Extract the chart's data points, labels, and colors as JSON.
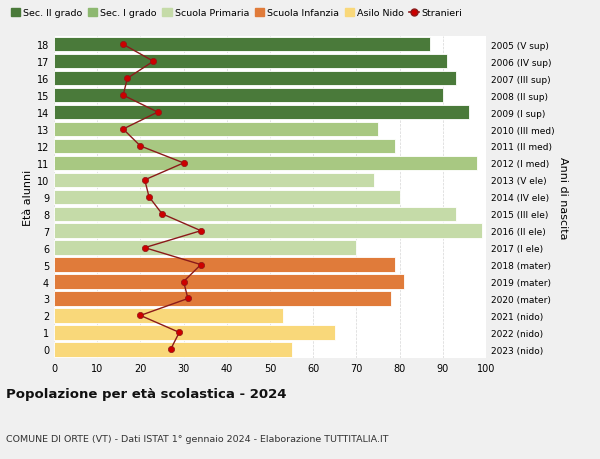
{
  "ages": [
    0,
    1,
    2,
    3,
    4,
    5,
    6,
    7,
    8,
    9,
    10,
    11,
    12,
    13,
    14,
    15,
    16,
    17,
    18
  ],
  "years": [
    "2023 (nido)",
    "2022 (nido)",
    "2021 (nido)",
    "2020 (mater)",
    "2019 (mater)",
    "2018 (mater)",
    "2017 (I ele)",
    "2016 (II ele)",
    "2015 (III ele)",
    "2014 (IV ele)",
    "2013 (V ele)",
    "2012 (I med)",
    "2011 (II med)",
    "2010 (III med)",
    "2009 (I sup)",
    "2008 (II sup)",
    "2007 (III sup)",
    "2006 (IV sup)",
    "2005 (V sup)"
  ],
  "bar_values": [
    55,
    65,
    53,
    78,
    81,
    79,
    70,
    99,
    93,
    80,
    74,
    98,
    79,
    75,
    96,
    90,
    93,
    91,
    87
  ],
  "bar_colors": [
    "#f9d87a",
    "#f9d87a",
    "#f9d87a",
    "#e07b3a",
    "#e07b3a",
    "#e07b3a",
    "#c5dba8",
    "#c5dba8",
    "#c5dba8",
    "#c5dba8",
    "#c5dba8",
    "#a8c882",
    "#a8c882",
    "#a8c882",
    "#4a7a3a",
    "#4a7a3a",
    "#4a7a3a",
    "#4a7a3a",
    "#4a7a3a"
  ],
  "stranieri_values": [
    27,
    29,
    20,
    31,
    30,
    34,
    21,
    34,
    25,
    22,
    21,
    30,
    20,
    16,
    24,
    16,
    17,
    23,
    16
  ],
  "legend_labels": [
    "Sec. II grado",
    "Sec. I grado",
    "Scuola Primaria",
    "Scuola Infanzia",
    "Asilo Nido",
    "Stranieri"
  ],
  "legend_colors": [
    "#4a7a3a",
    "#8db870",
    "#c5dba8",
    "#e07b3a",
    "#f9d87a",
    "#cc0000"
  ],
  "ylabel_left": "Età alunni",
  "ylabel_right": "Anni di nascita",
  "title": "Popolazione per età scolastica - 2024",
  "subtitle": "COMUNE DI ORTE (VT) - Dati ISTAT 1° gennaio 2024 - Elaborazione TUTTITALIA.IT",
  "xlim": [
    0,
    100
  ],
  "background_color": "#f0f0f0",
  "plot_bg_color": "#ffffff",
  "grid_color": "#cccccc",
  "stranieri_line_color": "#8b1a1a",
  "stranieri_marker_color": "#cc0000"
}
